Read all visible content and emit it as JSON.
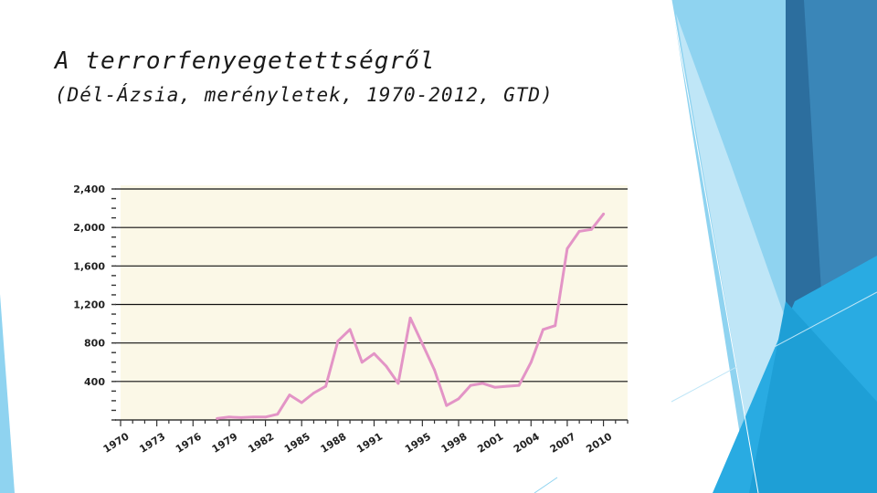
{
  "slide": {
    "title": "A terrorfenyegetettségről",
    "subtitle": "(Dél-Ázsia, merényletek, 1970-2012, GTD)"
  },
  "colors": {
    "plot_background": "#fbf8e7",
    "line": "#e394c6",
    "grid": "#111111",
    "deco_dark": "#2c6e9e",
    "deco_mid": "#29abe2",
    "deco_light": "#8fd3f0"
  },
  "chart_data": {
    "type": "line",
    "title": "",
    "xlabel": "",
    "ylabel": "",
    "xlim": [
      1970,
      2012
    ],
    "ylim": [
      0,
      2400
    ],
    "grid": true,
    "y_ticks": [
      400,
      800,
      1200,
      1600,
      2000,
      2400
    ],
    "y_tick_labels": [
      "400",
      "800",
      "1,200",
      "1,600",
      "2,000",
      "2,400"
    ],
    "x_ticks": [
      1970,
      1973,
      1976,
      1979,
      1982,
      1985,
      1988,
      1991,
      1995,
      1998,
      2001,
      2004,
      2007,
      2010
    ],
    "x_tick_labels": [
      "1970",
      "1973",
      "1976",
      "1979",
      "1982",
      "1985",
      "1988",
      "1991",
      "1995",
      "1998",
      "2001",
      "2004",
      "2007",
      "2010"
    ],
    "series": [
      {
        "x": [
          1970,
          1971,
          1972,
          1973,
          1974,
          1975,
          1976,
          1977,
          1978,
          1979,
          1980,
          1981,
          1982,
          1983,
          1984,
          1985,
          1986,
          1987,
          1988,
          1989,
          1990,
          1991,
          1992,
          1993,
          1994,
          1995,
          1996,
          1997,
          1998,
          1999,
          2000,
          2001,
          2002,
          2003,
          2004,
          2005,
          2006,
          2007,
          2008,
          2009,
          2010,
          2011,
          2012
        ],
        "y": [
          0,
          0,
          0,
          0,
          0,
          0,
          0,
          0,
          15,
          30,
          25,
          30,
          30,
          60,
          260,
          180,
          280,
          350,
          820,
          940,
          600,
          690,
          560,
          380,
          1060,
          790,
          520,
          150,
          220,
          360,
          380,
          340,
          350,
          360,
          600,
          940,
          980,
          1780,
          1960,
          1980,
          2140,
          null,
          null
        ]
      }
    ]
  }
}
